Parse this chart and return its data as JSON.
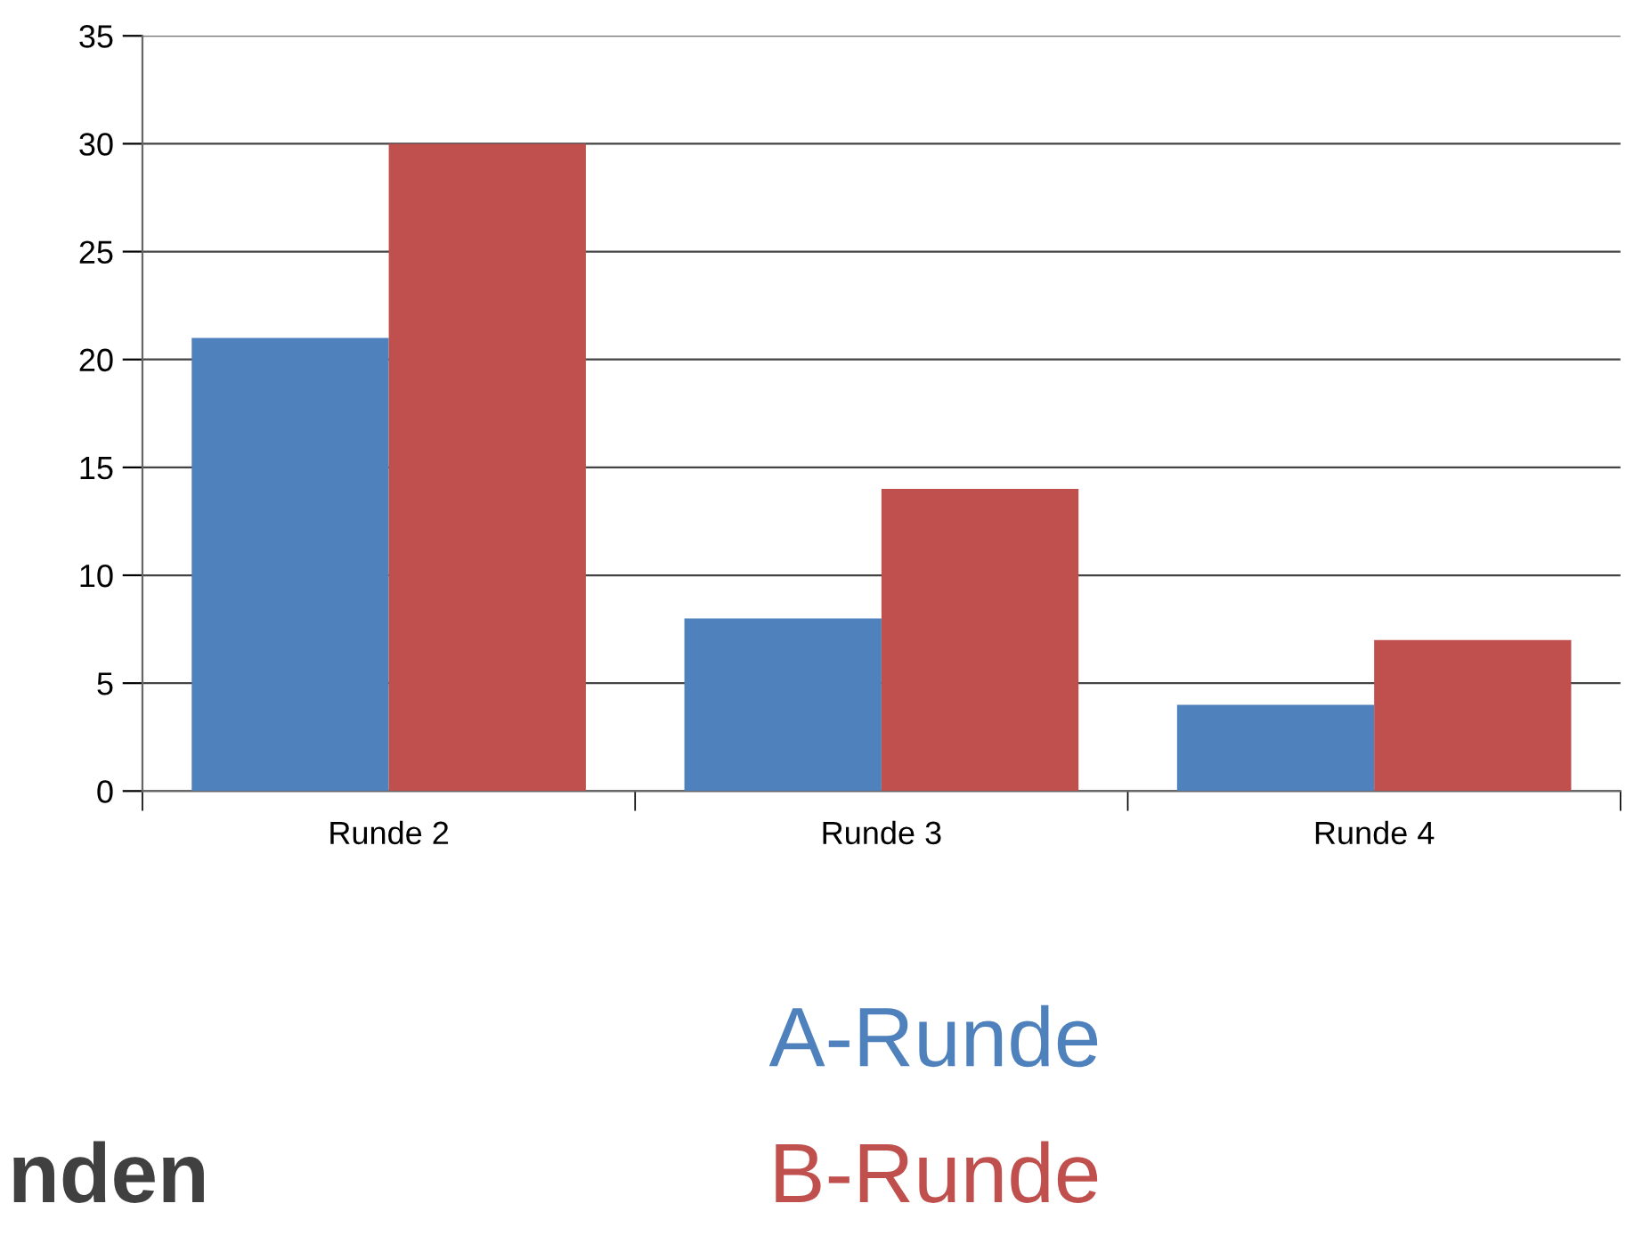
{
  "chart_data": {
    "type": "bar",
    "categories": [
      "Runde 2",
      "Runde 3",
      "Runde 4"
    ],
    "series": [
      {
        "name": "A-Runde",
        "color": "#4f81bd",
        "values": [
          21,
          8,
          4
        ]
      },
      {
        "name": "B-Runde",
        "color": "#c0504d",
        "values": [
          30,
          14,
          7
        ]
      }
    ],
    "ylim": [
      0,
      35
    ],
    "yticks": [
      0,
      5,
      10,
      15,
      20,
      25,
      30,
      35
    ],
    "grid": "y",
    "legend": "bottom",
    "annotations": [
      "nden"
    ]
  }
}
